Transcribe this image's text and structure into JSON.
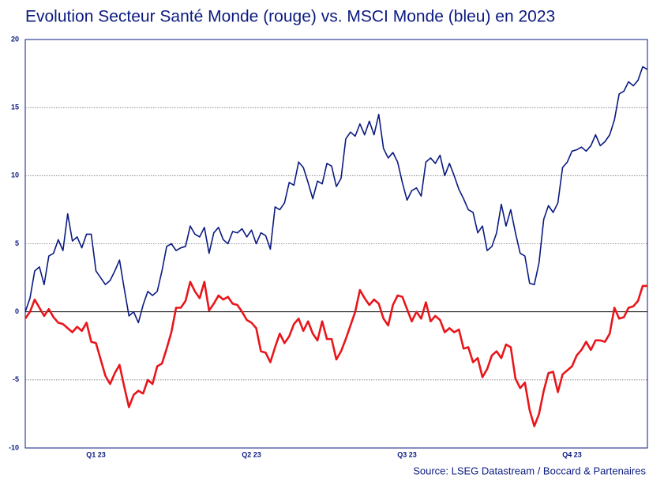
{
  "chart_data": {
    "type": "line",
    "title": "Evolution Secteur Santé Monde (rouge) vs. MSCI Monde (bleu) en 2023",
    "source": "Source: LSEG Datastream / Boccard & Partenaires",
    "categories": [
      null,
      null,
      null,
      null,
      null,
      null,
      null,
      null,
      null,
      null,
      null,
      null,
      null,
      null,
      null,
      "Q1 23",
      null,
      null,
      null,
      null,
      null,
      null,
      null,
      null,
      null,
      null,
      null,
      null,
      null,
      null,
      null,
      null,
      null,
      null,
      null,
      null,
      null,
      null,
      null,
      null,
      null,
      null,
      null,
      null,
      null,
      null,
      null,
      null,
      "Q2 23",
      null,
      null,
      null,
      null,
      null,
      null,
      null,
      null,
      null,
      null,
      null,
      null,
      null,
      null,
      null,
      null,
      null,
      null,
      null,
      null,
      null,
      null,
      null,
      null,
      null,
      null,
      null,
      null,
      null,
      null,
      null,
      null,
      "Q3 23",
      null,
      null,
      null,
      null,
      null,
      null,
      null,
      null,
      null,
      null,
      null,
      null,
      null,
      null,
      null,
      null,
      null,
      null,
      null,
      null,
      null,
      null,
      null,
      null,
      null,
      null,
      null,
      null,
      null,
      null,
      null,
      null,
      null,
      null,
      "Q4 23",
      null,
      null,
      null,
      null,
      null,
      null,
      null,
      null,
      null,
      null,
      null,
      null,
      null,
      null,
      null,
      null
    ],
    "series": [
      {
        "color": "#0b1a80",
        "values": [
          0,
          1,
          3,
          3.3,
          2,
          4.1,
          4.3,
          5.3,
          4.5,
          7.2,
          5.2,
          5.5,
          4.7,
          5.7,
          5.7,
          3,
          2.5,
          2,
          2.3,
          3,
          3.8,
          1.7,
          -0.3,
          0,
          -0.8,
          0.5,
          1.5,
          1.2,
          1.5,
          3,
          4.8,
          5,
          4.5,
          4.7,
          4.8,
          6.3,
          5.7,
          5.5,
          6.2,
          4.3,
          5.8,
          6.2,
          5.3,
          5,
          5.9,
          5.8,
          6.1,
          5.5,
          6,
          5,
          5.8,
          5.6,
          4.6,
          7.7,
          7.5,
          8,
          9.5,
          9.3,
          11,
          10.6,
          9.5,
          8.3,
          9.6,
          9.4,
          10.9,
          10.7,
          9.2,
          9.8,
          12.7,
          13.2,
          12.9,
          13.8,
          13,
          14,
          13,
          14.5,
          12,
          11.3,
          11.7,
          11,
          9.5,
          8.2,
          8.9,
          9.1,
          8.5,
          11,
          11.3,
          10.9,
          11.5,
          10,
          10.9,
          10,
          9,
          8.3,
          7.5,
          7.3,
          5.8,
          6.3,
          4.5,
          4.8,
          5.8,
          7.9,
          6.3,
          7.5,
          5.8,
          4.3,
          4.1,
          2.1,
          2,
          3.6,
          6.8,
          7.8,
          7.3,
          8,
          10.6,
          11,
          11.8,
          11.9,
          12.1,
          11.8,
          12.2,
          13,
          12.2,
          12.5,
          13,
          14.1,
          16,
          16.2,
          16.9,
          16.6,
          17,
          18,
          17.8
        ]
      },
      {
        "color": "#e8161b",
        "values": [
          -0.5,
          0,
          0.9,
          0.3,
          -0.3,
          0.2,
          -0.4,
          -0.8,
          -0.9,
          -1.2,
          -1.5,
          -1.1,
          -1.4,
          -0.8,
          -2.2,
          -2.3,
          -3.5,
          -4.7,
          -5.3,
          -4.5,
          -3.9,
          -5.5,
          -7,
          -6.1,
          -5.8,
          -6,
          -5,
          -5.3,
          -4,
          -3.8,
          -2.7,
          -1.5,
          0.3,
          0.3,
          0.8,
          2.2,
          1.5,
          1,
          2.2,
          0.1,
          0.6,
          1.2,
          0.9,
          1.1,
          0.6,
          0.5,
          0,
          -0.6,
          -0.8,
          -1.2,
          -2.9,
          -3,
          -3.7,
          -2.6,
          -1.6,
          -2.3,
          -1.8,
          -0.9,
          -0.5,
          -1.4,
          -0.7,
          -1.6,
          -2.1,
          -0.7,
          -2,
          -2,
          -3.5,
          -2.9,
          -2,
          -1,
          0,
          1.6,
          1,
          0.5,
          0.9,
          0.6,
          -0.5,
          -1,
          0.5,
          1.2,
          1.1,
          0.2,
          -0.7,
          0,
          -0.5,
          0.7,
          -0.7,
          -0.3,
          -0.6,
          -1.5,
          -1.2,
          -1.5,
          -1.3,
          -2.7,
          -2.6,
          -3.7,
          -3.4,
          -4.8,
          -4.2,
          -3.2,
          -2.9,
          -3.4,
          -2.4,
          -2.6,
          -4.9,
          -5.6,
          -5.2,
          -7.2,
          -8.4,
          -7.5,
          -5.8,
          -4.5,
          -4.4,
          -5.9,
          -4.6,
          -4.3,
          -4,
          -3.2,
          -2.8,
          -2.2,
          -2.8,
          -2.1,
          -2.1,
          -2.2,
          -1.6,
          0.3,
          -0.5,
          -0.4,
          0.3,
          0.4,
          0.8,
          1.9,
          1.9
        ]
      }
    ],
    "ylim": [
      -10,
      20
    ],
    "yticks": [
      -10,
      -5,
      0,
      5,
      10,
      15,
      20
    ],
    "grid": true
  }
}
